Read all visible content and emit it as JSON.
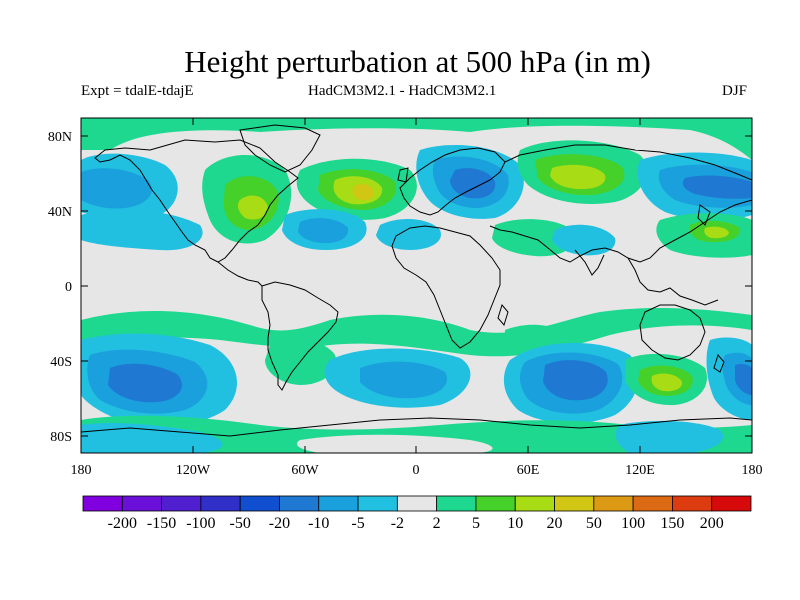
{
  "figure": {
    "title": "Height perturbation at 500 hPa (in m)",
    "left_text": "Expt = tdalE-tdajE",
    "center_text": "HadCM3M2.1 - HadCM3M2.1",
    "right_text": "DJF"
  },
  "axes": {
    "lat_labels": [
      "80N",
      "40N",
      "0",
      "40S",
      "80S"
    ],
    "lon_labels": [
      "180",
      "120W",
      "60W",
      "0",
      "60E",
      "120E",
      "180"
    ]
  },
  "colorbar": {
    "labels": [
      "-200",
      "-150",
      "-100",
      "-50",
      "-20",
      "-10",
      "-5",
      "-2",
      "2",
      "5",
      "10",
      "20",
      "50",
      "100",
      "150",
      "200"
    ],
    "colors": [
      "#8000e0",
      "#6a10d8",
      "#5020d0",
      "#3030c8",
      "#1050d0",
      "#1f78d2",
      "#1aa0dc",
      "#22c0e0",
      "#e6e6e6",
      "#1ed890",
      "#46d02a",
      "#a8dc14",
      "#d2c614",
      "#dc9a14",
      "#dc6a14",
      "#dc3c10",
      "#d60a0a"
    ]
  },
  "palette": {
    "neutral": "#e6e6e6",
    "coast": "#000000"
  }
}
